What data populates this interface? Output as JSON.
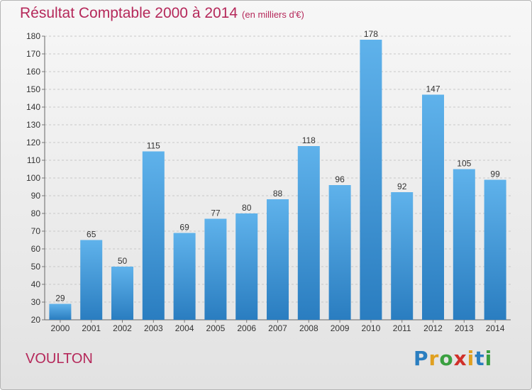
{
  "chart_title": "Résultat Comptable 2000 à 2014",
  "chart_subtitle": "(en milliers d'€)",
  "location": "VOULTON",
  "brand": {
    "letters": [
      "P",
      "r",
      "o",
      "x",
      "i",
      "t",
      "i"
    ],
    "colors": [
      "#2a7ec0",
      "#e0a020",
      "#3aa040",
      "#d0302a",
      "#e0a020",
      "#2a7ec0",
      "#3aa040"
    ]
  },
  "colors": {
    "title": "#b5285a",
    "bar_top": "#5fb2eb",
    "bar_bottom": "#2a7dc0",
    "grid": "#c8c8c8"
  },
  "chart_data": {
    "type": "bar",
    "title": "Résultat Comptable 2000 à 2014",
    "subtitle": "(en milliers d'€)",
    "xlabel": "",
    "ylabel": "",
    "categories": [
      "2000",
      "2001",
      "2002",
      "2003",
      "2004",
      "2005",
      "2006",
      "2007",
      "2008",
      "2009",
      "2010",
      "2011",
      "2012",
      "2013",
      "2014"
    ],
    "values": [
      29,
      65,
      50,
      115,
      69,
      77,
      80,
      88,
      118,
      96,
      178,
      92,
      147,
      105,
      99
    ],
    "ylim": [
      20,
      180
    ],
    "yticks": [
      20,
      30,
      40,
      50,
      60,
      70,
      80,
      90,
      100,
      110,
      120,
      130,
      140,
      150,
      160,
      170,
      180
    ],
    "grid": "horizontal dashed",
    "data_labels": true,
    "legend": "none"
  }
}
